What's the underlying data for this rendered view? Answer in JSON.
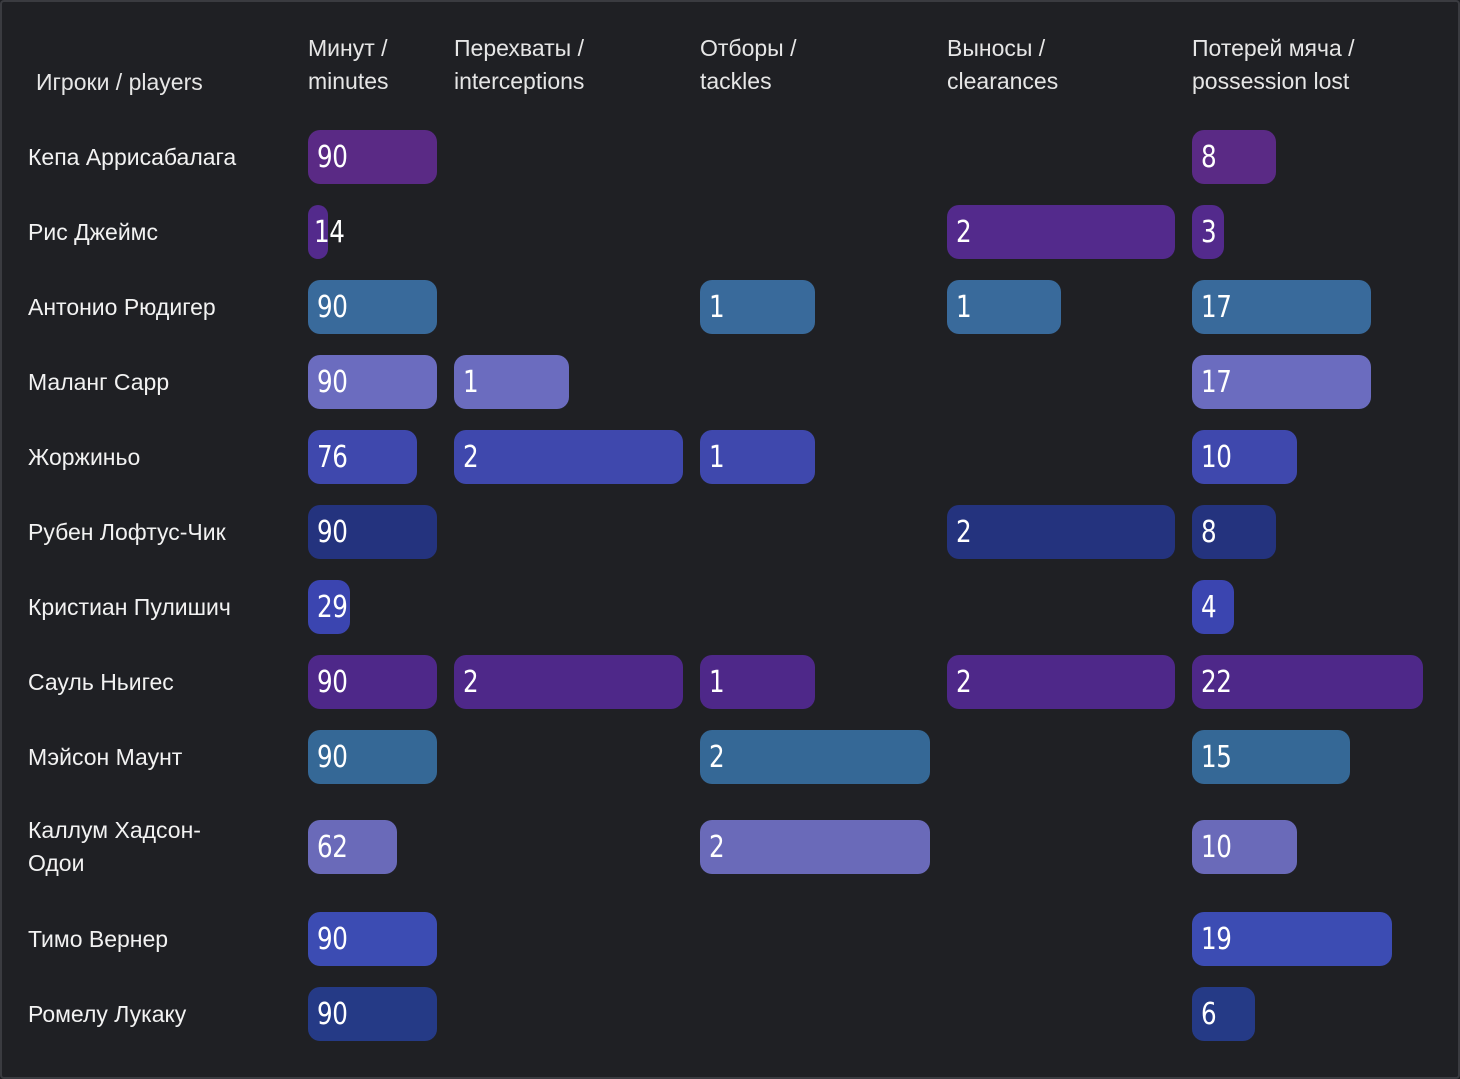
{
  "chart_data": {
    "type": "table",
    "header_players": "Игроки / players",
    "columns": [
      {
        "key": "minutes",
        "label_line1": "Минут /",
        "label_line2": "minutes",
        "max": 90
      },
      {
        "key": "interceptions",
        "label_line1": "Перехваты /",
        "label_line2": "interceptions",
        "max": 2
      },
      {
        "key": "tackles",
        "label_line1": "Отборы /",
        "label_line2": "tackles",
        "max": 2
      },
      {
        "key": "clearances",
        "label_line1": "Выносы /",
        "label_line2": "clearances",
        "max": 2
      },
      {
        "key": "possession_lost",
        "label_line1": "Потерей мяча /",
        "label_line2": "possession lost",
        "max": 22
      }
    ],
    "rows": [
      {
        "player": [
          "Кепа Аррисабалага"
        ],
        "color": "#5a2a85",
        "values": [
          90,
          null,
          null,
          null,
          8
        ]
      },
      {
        "player": [
          "Рис Джеймс"
        ],
        "color": "#532a8c",
        "values": [
          14,
          null,
          null,
          2,
          3
        ]
      },
      {
        "player": [
          "Антонио Рюдигер"
        ],
        "color": "#396a9b",
        "values": [
          90,
          null,
          1,
          1,
          17
        ]
      },
      {
        "player": [
          "Маланг Сарр"
        ],
        "color": "#6b6cbf",
        "values": [
          90,
          1,
          null,
          null,
          17
        ]
      },
      {
        "player": [
          "Жоржиньо"
        ],
        "color": "#3f48ad",
        "values": [
          76,
          2,
          1,
          null,
          10
        ]
      },
      {
        "player": [
          "Рубен Лофтус-Чик"
        ],
        "color": "#24337e",
        "values": [
          90,
          null,
          null,
          2,
          8
        ]
      },
      {
        "player": [
          "Кристиан Пулишич"
        ],
        "color": "#3b45b0",
        "values": [
          29,
          null,
          null,
          null,
          4
        ]
      },
      {
        "player": [
          "Сауль Ньигес"
        ],
        "color": "#4e2889",
        "values": [
          90,
          2,
          1,
          2,
          22
        ]
      },
      {
        "player": [
          "Мэйсон Маунт"
        ],
        "color": "#356896",
        "values": [
          90,
          null,
          2,
          null,
          15
        ]
      },
      {
        "player": [
          "Каллум Хадсон-",
          "Одои"
        ],
        "color": "#6a6ab9",
        "values": [
          62,
          null,
          2,
          null,
          10
        ]
      },
      {
        "player": [
          "Тимо Вернер"
        ],
        "color": "#3c4cb3",
        "values": [
          90,
          null,
          null,
          null,
          19
        ]
      },
      {
        "player": [
          "Ромелу Лукаку"
        ],
        "color": "#253a86",
        "values": [
          90,
          null,
          null,
          null,
          6
        ]
      }
    ]
  }
}
